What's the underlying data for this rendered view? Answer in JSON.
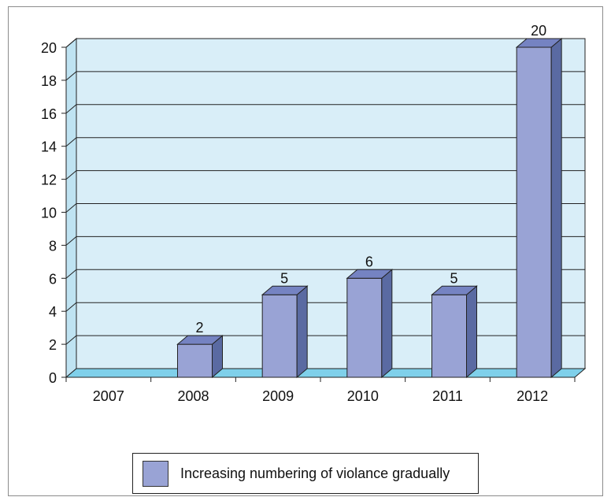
{
  "chart_data": {
    "type": "bar",
    "categories": [
      "2007",
      "2008",
      "2009",
      "2010",
      "2011",
      "2012"
    ],
    "values": [
      0,
      2,
      5,
      6,
      5,
      20
    ],
    "data_labels": [
      "",
      "2",
      "5",
      "6",
      "5",
      "20"
    ],
    "series": [
      {
        "name": "Increasing numbering of violance gradually",
        "values": [
          0,
          2,
          5,
          6,
          5,
          20
        ]
      }
    ],
    "ylim": [
      0,
      20
    ],
    "yticks": [
      "0",
      "2",
      "4",
      "6",
      "8",
      "10",
      "12",
      "14",
      "16",
      "18",
      "20"
    ],
    "grid": true,
    "legend_position": "bottom",
    "style": "3d-column",
    "colors": {
      "bar_front": "#99a3d5",
      "bar_side": "#5a6aa2",
      "bar_top": "#7583c2",
      "plot_bg": "#d9eef8",
      "floor": "#7fd0ea"
    }
  },
  "legend": {
    "label": "Increasing numbering of violance gradually"
  }
}
